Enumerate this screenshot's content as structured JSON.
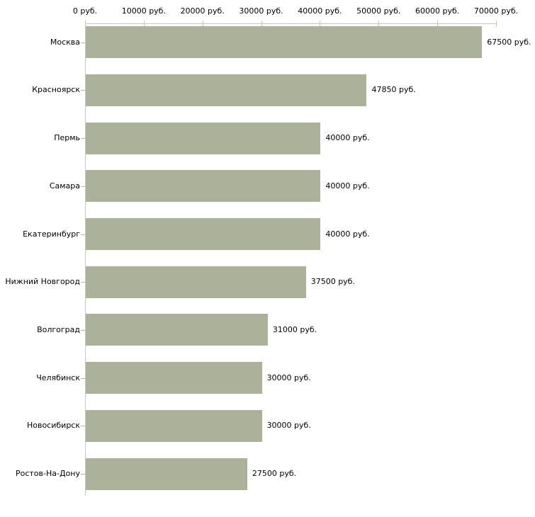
{
  "chart_data": {
    "type": "bar",
    "orientation": "horizontal",
    "title": "",
    "xlabel": "",
    "ylabel": "",
    "categories": [
      "Москва",
      "Красноярск",
      "Пермь",
      "Самара",
      "Екатеринбург",
      "Нижний Новгород",
      "Волгоград",
      "Челябинск",
      "Новосибирск",
      "Ростов-На-Дону"
    ],
    "values": [
      67500,
      47850,
      40000,
      40000,
      40000,
      37500,
      31000,
      30000,
      30000,
      27500
    ],
    "value_labels": [
      "67500 руб.",
      "47850 руб.",
      "40000 руб.",
      "40000 руб.",
      "40000 руб.",
      "37500 руб.",
      "31000 руб.",
      "30000 руб.",
      "30000 руб.",
      "27500 руб."
    ],
    "x_axis": {
      "min": 0,
      "max": 70000,
      "tick_step": 10000,
      "position": "top",
      "tick_labels": [
        "0 руб.",
        "10000 руб.",
        "20000 руб.",
        "30000 руб.",
        "40000 руб.",
        "50000 руб.",
        "60000 руб.",
        "70000 руб."
      ]
    },
    "grid": false,
    "legend": false,
    "colors": {
      "bar": "#acb199",
      "axis_line": "#c6c6c6",
      "x_tick": "#cccc99",
      "category_tick": "#b5b5b5",
      "text": "#000000",
      "background": "#ffffff"
    }
  }
}
